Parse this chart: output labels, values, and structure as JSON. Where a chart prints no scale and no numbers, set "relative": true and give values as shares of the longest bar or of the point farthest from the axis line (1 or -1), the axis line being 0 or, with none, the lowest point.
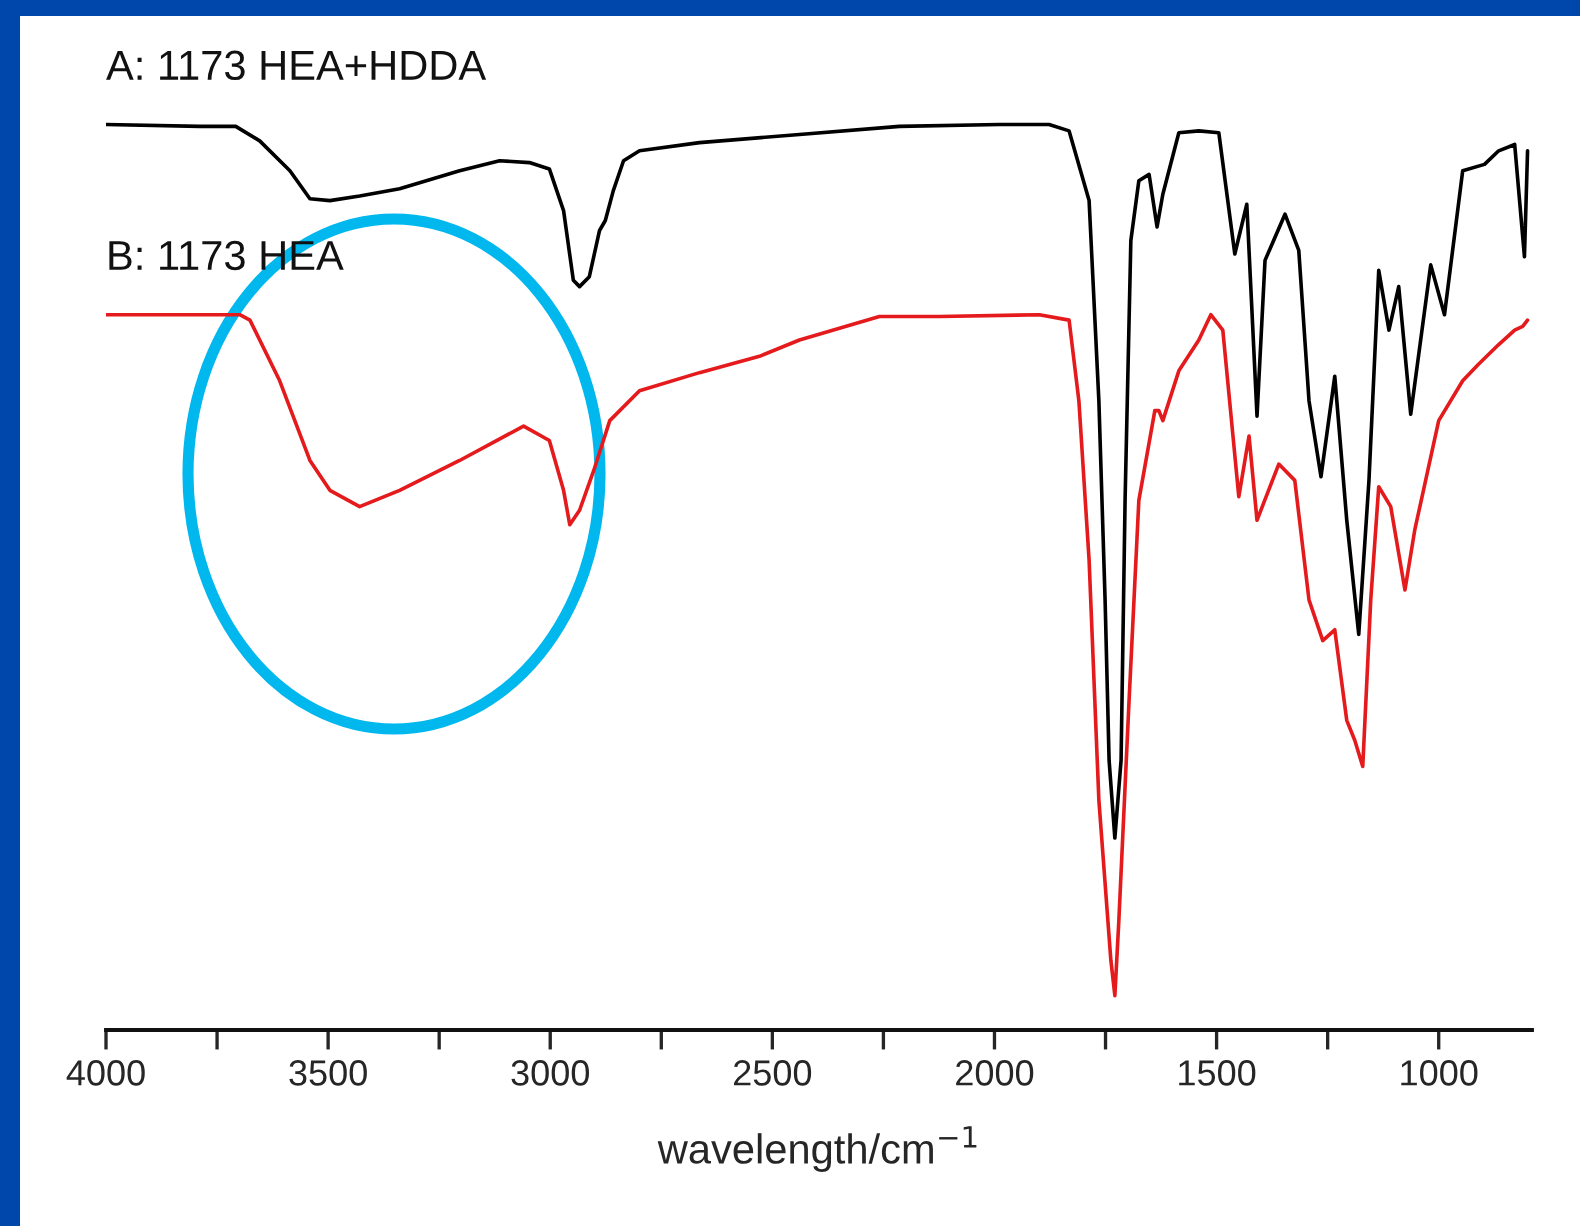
{
  "chart_data": {
    "type": "line",
    "relative": true,
    "xlabel": "wavelength/cm$^{−1}$",
    "xlim": [
      4000,
      790
    ],
    "xticks": [
      4000,
      {
        "value": 3750,
        "label": null
      },
      3500,
      {
        "value": 3250,
        "label": null
      },
      3000,
      {
        "value": 2750,
        "label": null
      },
      2500,
      {
        "value": 2250,
        "label": null
      },
      2000,
      {
        "value": 1750,
        "label": null
      },
      1500,
      {
        "value": 1250,
        "label": null
      },
      1000
    ],
    "tick_labels": "x",
    "grid": false,
    "legend": false,
    "marker": "none",
    "line_style": "solid",
    "series": [
      {
        "name": "A: 1173 HEA+HDDA",
        "color": "#000000",
        "x": [
          4000,
          3789,
          3708,
          3654,
          3586,
          3541,
          3496,
          3429,
          3339,
          3204,
          3114,
          3047,
          3002,
          2970,
          2948,
          2934,
          2912,
          2889,
          2876,
          2858,
          2835,
          2799,
          2664,
          2439,
          2214,
          1989,
          1877,
          1832,
          1787,
          1765,
          1751,
          1742,
          1729,
          1715,
          1706,
          1693,
          1675,
          1652,
          1634,
          1621,
          1585,
          1540,
          1495,
          1459,
          1432,
          1409,
          1391,
          1346,
          1315,
          1292,
          1265,
          1234,
          1207,
          1180,
          1157,
          1135,
          1112,
          1090,
          1063,
          1018,
          987,
          946,
          897,
          865,
          829,
          807,
          800
        ],
        "values": [
          1.0,
          0.998,
          0.998,
          0.982,
          0.949,
          0.918,
          0.916,
          0.921,
          0.929,
          0.949,
          0.96,
          0.958,
          0.951,
          0.905,
          0.828,
          0.821,
          0.832,
          0.883,
          0.894,
          0.927,
          0.96,
          0.971,
          0.98,
          0.989,
          0.998,
          1.0,
          1.0,
          0.993,
          0.916,
          0.695,
          0.475,
          0.298,
          0.212,
          0.298,
          0.585,
          0.872,
          0.938,
          0.945,
          0.887,
          0.923,
          0.991,
          0.993,
          0.991,
          0.857,
          0.912,
          0.678,
          0.85,
          0.901,
          0.861,
          0.695,
          0.611,
          0.722,
          0.563,
          0.437,
          0.607,
          0.839,
          0.773,
          0.821,
          0.68,
          0.845,
          0.79,
          0.949,
          0.956,
          0.971,
          0.978,
          0.854,
          0.971
        ]
      },
      {
        "name": "B: 1173 HEA",
        "color": "#e41a1c",
        "x": [
          4000,
          3699,
          3676,
          3609,
          3541,
          3496,
          3429,
          3339,
          3204,
          3060,
          3002,
          2970,
          2956,
          2934,
          2902,
          2866,
          2799,
          2664,
          2529,
          2439,
          2259,
          2124,
          1899,
          1832,
          1810,
          1787,
          1765,
          1738,
          1729,
          1720,
          1697,
          1675,
          1639,
          1630,
          1621,
          1585,
          1540,
          1513,
          1486,
          1450,
          1427,
          1409,
          1360,
          1324,
          1292,
          1261,
          1234,
          1207,
          1189,
          1171,
          1153,
          1135,
          1108,
          1076,
          1054,
          1000,
          946,
          911,
          865,
          829,
          811,
          800
        ],
        "values": [
          0.79,
          0.79,
          0.784,
          0.717,
          0.629,
          0.596,
          0.578,
          0.596,
          0.629,
          0.667,
          0.651,
          0.596,
          0.558,
          0.574,
          0.618,
          0.673,
          0.706,
          0.726,
          0.744,
          0.762,
          0.788,
          0.788,
          0.79,
          0.784,
          0.695,
          0.519,
          0.254,
          0.077,
          0.038,
          0.121,
          0.364,
          0.585,
          0.684,
          0.684,
          0.673,
          0.728,
          0.762,
          0.79,
          0.773,
          0.589,
          0.656,
          0.563,
          0.625,
          0.607,
          0.475,
          0.43,
          0.442,
          0.342,
          0.32,
          0.291,
          0.475,
          0.6,
          0.578,
          0.486,
          0.552,
          0.673,
          0.717,
          0.735,
          0.757,
          0.773,
          0.777,
          0.784
        ]
      }
    ]
  }
}
